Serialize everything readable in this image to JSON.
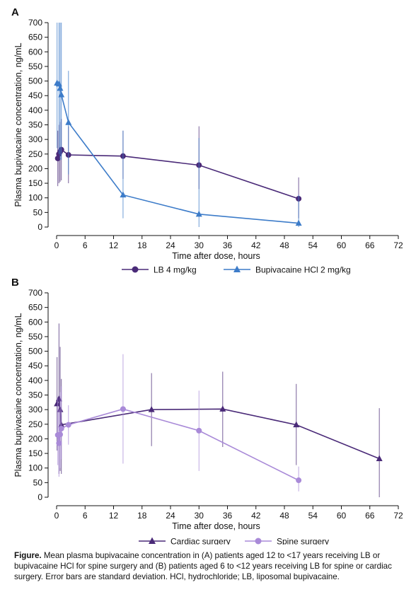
{
  "chart_data": [
    {
      "panel": "A",
      "type": "line",
      "xlabel": "Time after dose, hours",
      "ylabel": "Plasma bupivacaine concentration, ng/mL",
      "xlim": [
        0,
        72
      ],
      "ylim": [
        0,
        700
      ],
      "xticks": [
        "0",
        "6",
        "12",
        "18",
        "24",
        "30",
        "36",
        "42",
        "48",
        "54",
        "60",
        "66",
        "72"
      ],
      "yticks": [
        "0",
        "50",
        "100",
        "150",
        "200",
        "250",
        "300",
        "350",
        "400",
        "450",
        "500",
        "550",
        "600",
        "650",
        "700"
      ],
      "grid": false,
      "legend_position": "bottom",
      "series": [
        {
          "name": "LB 4 mg/kg",
          "color": "#4a2a78",
          "marker": "circle",
          "x": [
            0.25,
            0.5,
            0.75,
            1,
            2.5,
            14,
            30,
            51
          ],
          "y": [
            235,
            250,
            258,
            265,
            247,
            243,
            212,
            97
          ],
          "err_low": [
            140,
            150,
            155,
            160,
            150,
            165,
            130,
            30
          ],
          "err_high": [
            330,
            350,
            360,
            370,
            345,
            330,
            345,
            170
          ]
        },
        {
          "name": "Bupivacaine HCl 2 mg/kg",
          "color": "#3d7cc9",
          "marker": "triangle",
          "x": [
            0.1,
            0.5,
            0.75,
            1,
            2.5,
            14,
            30,
            51
          ],
          "y": [
            493,
            490,
            475,
            453,
            358,
            110,
            44,
            13
          ],
          "err_low": [
            270,
            250,
            230,
            230,
            180,
            30,
            0,
            0
          ],
          "err_high": [
            700,
            700,
            700,
            700,
            535,
            330,
            305,
            110
          ]
        }
      ]
    },
    {
      "panel": "B",
      "type": "line",
      "xlabel": "Time after dose, hours",
      "ylabel": "Plasma bupivacaine concentration, ng/mL",
      "xlim": [
        0,
        72
      ],
      "ylim": [
        0,
        700
      ],
      "xticks": [
        "0",
        "6",
        "12",
        "18",
        "24",
        "30",
        "36",
        "42",
        "48",
        "54",
        "60",
        "66",
        "72"
      ],
      "yticks": [
        "0",
        "50",
        "100",
        "150",
        "200",
        "250",
        "300",
        "350",
        "400",
        "450",
        "500",
        "550",
        "600",
        "650",
        "700"
      ],
      "grid": false,
      "legend_position": "bottom",
      "series": [
        {
          "name": "Cardiac surgery",
          "color": "#4a2a78",
          "marker": "triangle",
          "x": [
            0.1,
            0.5,
            0.75,
            1,
            20,
            35,
            50.5,
            68
          ],
          "y": [
            320,
            337,
            300,
            248,
            300,
            302,
            248,
            132
          ],
          "err_low": [
            160,
            80,
            90,
            80,
            175,
            172,
            110,
            0
          ],
          "err_high": [
            480,
            595,
            515,
            405,
            425,
            430,
            388,
            305
          ]
        },
        {
          "name": "Spine surgery",
          "color": "#a98ad8",
          "marker": "circle",
          "x": [
            0.25,
            0.5,
            0.75,
            1,
            2.5,
            14,
            30,
            51
          ],
          "y": [
            213,
            185,
            215,
            235,
            248,
            302,
            228,
            58
          ],
          "err_low": [
            110,
            70,
            100,
            130,
            180,
            115,
            90,
            20
          ],
          "err_high": [
            340,
            300,
            360,
            380,
            315,
            490,
            365,
            105
          ]
        }
      ]
    }
  ],
  "caption": {
    "label": "Figure.",
    "text": " Mean plasma bupivacaine concentration in (A) patients aged 12 to <17 years receiving LB or bupivacaine HCl for spine surgery and (B) patients aged 6 to <12 years receiving LB for spine or cardiac surgery. Error bars are standard deviation. HCl, hydrochloride; LB, liposomal bupivacaine."
  }
}
